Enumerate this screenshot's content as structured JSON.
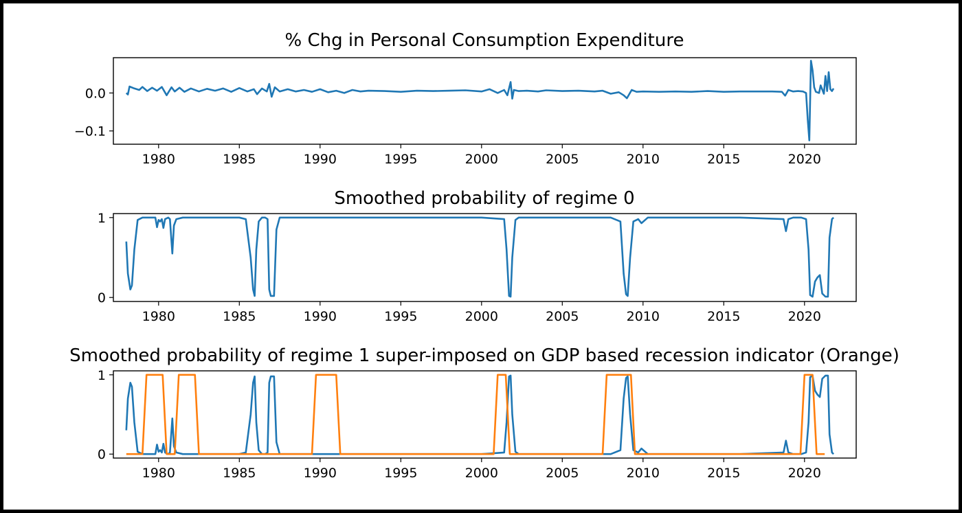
{
  "colors": {
    "series": "#1f77b4",
    "recession": "#ff7f0e",
    "axes": "#000000"
  },
  "chart_data": [
    {
      "type": "line",
      "title": "% Chg in Personal Consumption Expenditure",
      "xlabel": "",
      "ylabel": "",
      "xlim": [
        1977.2,
        2023.2
      ],
      "ylim": [
        -0.135,
        0.093
      ],
      "x_ticks": [
        1980,
        1985,
        1990,
        1995,
        2000,
        2005,
        2010,
        2015,
        2020
      ],
      "y_ticks": [
        {
          "value": 0.0,
          "label": "0.0"
        },
        {
          "value": -0.1,
          "label": "−0.1"
        }
      ],
      "grid": false,
      "series": [
        {
          "color": "#1f77b4",
          "x": [
            1978.0,
            1978.1,
            1978.2,
            1978.5,
            1978.8,
            1979.0,
            1979.3,
            1979.6,
            1979.9,
            1980.2,
            1980.5,
            1980.8,
            1981.0,
            1981.3,
            1981.6,
            1982.0,
            1982.5,
            1983.0,
            1983.5,
            1984.0,
            1984.5,
            1985.0,
            1985.5,
            1985.9,
            1986.1,
            1986.4,
            1986.7,
            1986.85,
            1987.0,
            1987.2,
            1987.5,
            1988.0,
            1988.5,
            1989.0,
            1989.5,
            1990.0,
            1990.5,
            1991.0,
            1991.5,
            1992.0,
            1992.5,
            1993.0,
            1994.0,
            1995.0,
            1996.0,
            1997.0,
            1998.0,
            1999.0,
            2000.0,
            2000.5,
            2001.0,
            2001.4,
            2001.6,
            2001.8,
            2001.9,
            2002.0,
            2002.3,
            2002.8,
            2003.5,
            2004.0,
            2005.0,
            2006.0,
            2007.0,
            2007.5,
            2008.0,
            2008.5,
            2008.8,
            2009.0,
            2009.3,
            2009.6,
            2010.0,
            2011.0,
            2012.0,
            2013.0,
            2014.0,
            2015.0,
            2016.0,
            2017.0,
            2018.0,
            2018.6,
            2018.8,
            2019.0,
            2019.3,
            2019.6,
            2019.9,
            2020.1,
            2020.2,
            2020.3,
            2020.4,
            2020.5,
            2020.6,
            2020.7,
            2020.9,
            2021.0,
            2021.2,
            2021.3,
            2021.4,
            2021.5,
            2021.6,
            2021.7,
            2021.8
          ],
          "y": [
            0.0,
            -0.004,
            0.017,
            0.012,
            0.008,
            0.016,
            0.005,
            0.014,
            0.006,
            0.016,
            -0.006,
            0.015,
            0.004,
            0.014,
            0.003,
            0.012,
            0.004,
            0.011,
            0.006,
            0.012,
            0.003,
            0.013,
            0.004,
            0.01,
            -0.003,
            0.012,
            0.004,
            0.024,
            -0.01,
            0.015,
            0.004,
            0.01,
            0.004,
            0.008,
            0.003,
            0.01,
            0.002,
            0.006,
            0.0,
            0.008,
            0.004,
            0.006,
            0.005,
            0.003,
            0.006,
            0.005,
            0.006,
            0.007,
            0.004,
            0.01,
            0.0,
            0.008,
            -0.006,
            0.029,
            -0.015,
            0.008,
            0.005,
            0.006,
            0.004,
            0.007,
            0.005,
            0.006,
            0.004,
            0.006,
            -0.002,
            0.002,
            -0.006,
            -0.014,
            0.008,
            0.003,
            0.004,
            0.003,
            0.004,
            0.003,
            0.005,
            0.003,
            0.004,
            0.004,
            0.004,
            0.003,
            -0.007,
            0.008,
            0.004,
            0.005,
            0.004,
            0.0,
            -0.07,
            -0.125,
            0.085,
            0.06,
            0.015,
            0.003,
            0.0,
            0.02,
            -0.002,
            0.045,
            0.005,
            0.055,
            0.01,
            0.005,
            0.012
          ]
        }
      ]
    },
    {
      "type": "line",
      "title": "Smoothed probability of regime 0",
      "xlabel": "",
      "ylabel": "",
      "xlim": [
        1977.2,
        2023.2
      ],
      "ylim": [
        -0.05,
        1.05
      ],
      "x_ticks": [
        1980,
        1985,
        1990,
        1995,
        2000,
        2005,
        2010,
        2015,
        2020
      ],
      "y_ticks": [
        {
          "value": 0,
          "label": "0"
        },
        {
          "value": 1,
          "label": "1"
        }
      ],
      "grid": false,
      "series": [
        {
          "color": "#1f77b4",
          "x": [
            1978.0,
            1978.1,
            1978.25,
            1978.35,
            1978.5,
            1978.7,
            1979.0,
            1979.5,
            1979.8,
            1979.9,
            1980.0,
            1980.1,
            1980.2,
            1980.3,
            1980.4,
            1980.6,
            1980.7,
            1980.85,
            1980.95,
            1981.1,
            1981.5,
            1982.0,
            1983.0,
            1984.0,
            1985.0,
            1985.4,
            1985.7,
            1985.85,
            1985.95,
            1986.05,
            1986.2,
            1986.4,
            1986.6,
            1986.75,
            1986.85,
            1986.95,
            1987.05,
            1987.15,
            1987.3,
            1987.5,
            1988.0,
            1990.0,
            1992.0,
            1995.0,
            1998.0,
            2000.0,
            2001.4,
            2001.55,
            2001.7,
            2001.8,
            2001.9,
            2002.1,
            2002.3,
            2005.0,
            2008.0,
            2008.6,
            2008.8,
            2008.95,
            2009.05,
            2009.2,
            2009.4,
            2009.7,
            2009.9,
            2010.3,
            2013.0,
            2016.0,
            2018.7,
            2018.85,
            2019.0,
            2019.3,
            2019.8,
            2020.1,
            2020.25,
            2020.35,
            2020.5,
            2020.65,
            2020.8,
            2020.95,
            2021.1,
            2021.3,
            2021.45,
            2021.55,
            2021.7,
            2021.8
          ],
          "y": [
            0.7,
            0.3,
            0.1,
            0.15,
            0.6,
            0.97,
            1.0,
            1.0,
            1.0,
            0.88,
            0.97,
            0.95,
            0.98,
            0.87,
            0.98,
            1.0,
            0.98,
            0.55,
            0.9,
            0.98,
            1.0,
            1.0,
            1.0,
            1.0,
            1.0,
            0.98,
            0.5,
            0.1,
            0.02,
            0.6,
            0.95,
            1.0,
            1.0,
            0.98,
            0.1,
            0.02,
            0.02,
            0.02,
            0.85,
            1.0,
            1.0,
            1.0,
            1.0,
            1.0,
            1.0,
            1.0,
            0.98,
            0.6,
            0.02,
            0.01,
            0.5,
            0.97,
            1.0,
            1.0,
            1.0,
            0.95,
            0.3,
            0.04,
            0.02,
            0.5,
            0.95,
            0.98,
            0.93,
            1.0,
            1.0,
            1.0,
            0.98,
            0.83,
            0.98,
            1.0,
            1.0,
            0.98,
            0.6,
            0.03,
            0.01,
            0.2,
            0.25,
            0.28,
            0.05,
            0.01,
            0.01,
            0.75,
            0.98,
            1.0
          ]
        }
      ]
    },
    {
      "type": "line",
      "title": "Smoothed probability of regime 1 super-imposed on GDP based recession indicator (Orange)",
      "xlabel": "",
      "ylabel": "",
      "xlim": [
        1977.2,
        2023.2
      ],
      "ylim": [
        -0.05,
        1.05
      ],
      "x_ticks": [
        1980,
        1985,
        1990,
        1995,
        2000,
        2005,
        2010,
        2015,
        2020
      ],
      "y_ticks": [
        {
          "value": 0,
          "label": "0"
        },
        {
          "value": 1,
          "label": "1"
        }
      ],
      "grid": false,
      "series": [
        {
          "color": "#1f77b4",
          "x": [
            1978.0,
            1978.1,
            1978.25,
            1978.35,
            1978.5,
            1978.7,
            1979.0,
            1979.5,
            1979.8,
            1979.9,
            1980.0,
            1980.1,
            1980.2,
            1980.3,
            1980.4,
            1980.6,
            1980.7,
            1980.85,
            1980.95,
            1981.1,
            1981.5,
            1982.0,
            1983.0,
            1984.0,
            1985.0,
            1985.4,
            1985.7,
            1985.85,
            1985.95,
            1986.05,
            1986.2,
            1986.4,
            1986.6,
            1986.75,
            1986.85,
            1986.95,
            1987.05,
            1987.15,
            1987.3,
            1987.5,
            1988.0,
            1990.0,
            1992.0,
            1995.0,
            1998.0,
            2000.0,
            2001.4,
            2001.55,
            2001.7,
            2001.8,
            2001.9,
            2002.1,
            2002.3,
            2005.0,
            2008.0,
            2008.6,
            2008.8,
            2008.95,
            2009.05,
            2009.2,
            2009.4,
            2009.7,
            2009.9,
            2010.3,
            2013.0,
            2016.0,
            2018.7,
            2018.85,
            2019.0,
            2019.3,
            2019.8,
            2020.1,
            2020.25,
            2020.35,
            2020.5,
            2020.65,
            2020.8,
            2020.95,
            2021.1,
            2021.3,
            2021.45,
            2021.55,
            2021.7,
            2021.8
          ],
          "y": [
            0.3,
            0.7,
            0.9,
            0.85,
            0.4,
            0.03,
            0.0,
            0.0,
            0.0,
            0.12,
            0.03,
            0.05,
            0.02,
            0.13,
            0.02,
            0.0,
            0.02,
            0.45,
            0.1,
            0.02,
            0.0,
            0.0,
            0.0,
            0.0,
            0.0,
            0.02,
            0.5,
            0.9,
            0.98,
            0.4,
            0.05,
            0.0,
            0.0,
            0.02,
            0.9,
            0.98,
            0.98,
            0.98,
            0.15,
            0.0,
            0.0,
            0.0,
            0.0,
            0.0,
            0.0,
            0.0,
            0.02,
            0.4,
            0.98,
            0.99,
            0.5,
            0.03,
            0.0,
            0.0,
            0.0,
            0.05,
            0.7,
            0.96,
            0.98,
            0.5,
            0.05,
            0.02,
            0.07,
            0.0,
            0.0,
            0.0,
            0.02,
            0.17,
            0.02,
            0.0,
            0.0,
            0.02,
            0.4,
            0.97,
            0.99,
            0.8,
            0.75,
            0.72,
            0.95,
            0.99,
            0.99,
            0.25,
            0.02,
            0.0
          ]
        },
        {
          "color": "#ff7f0e",
          "x": [
            1978.0,
            1979.0,
            1979.25,
            1980.25,
            1980.5,
            1981.0,
            1981.25,
            1982.25,
            1982.5,
            1989.5,
            1989.75,
            1991.0,
            1991.25,
            2000.75,
            2001.0,
            2001.5,
            2001.75,
            2007.5,
            2007.75,
            2009.25,
            2009.5,
            2019.75,
            2020.0,
            2020.5,
            2020.75,
            2021.25
          ],
          "y": [
            0,
            0,
            1,
            1,
            0,
            0,
            1,
            1,
            0,
            0,
            1,
            1,
            0,
            0,
            1,
            1,
            0,
            0,
            1,
            1,
            0,
            0,
            1,
            1,
            0,
            0
          ]
        }
      ]
    }
  ]
}
